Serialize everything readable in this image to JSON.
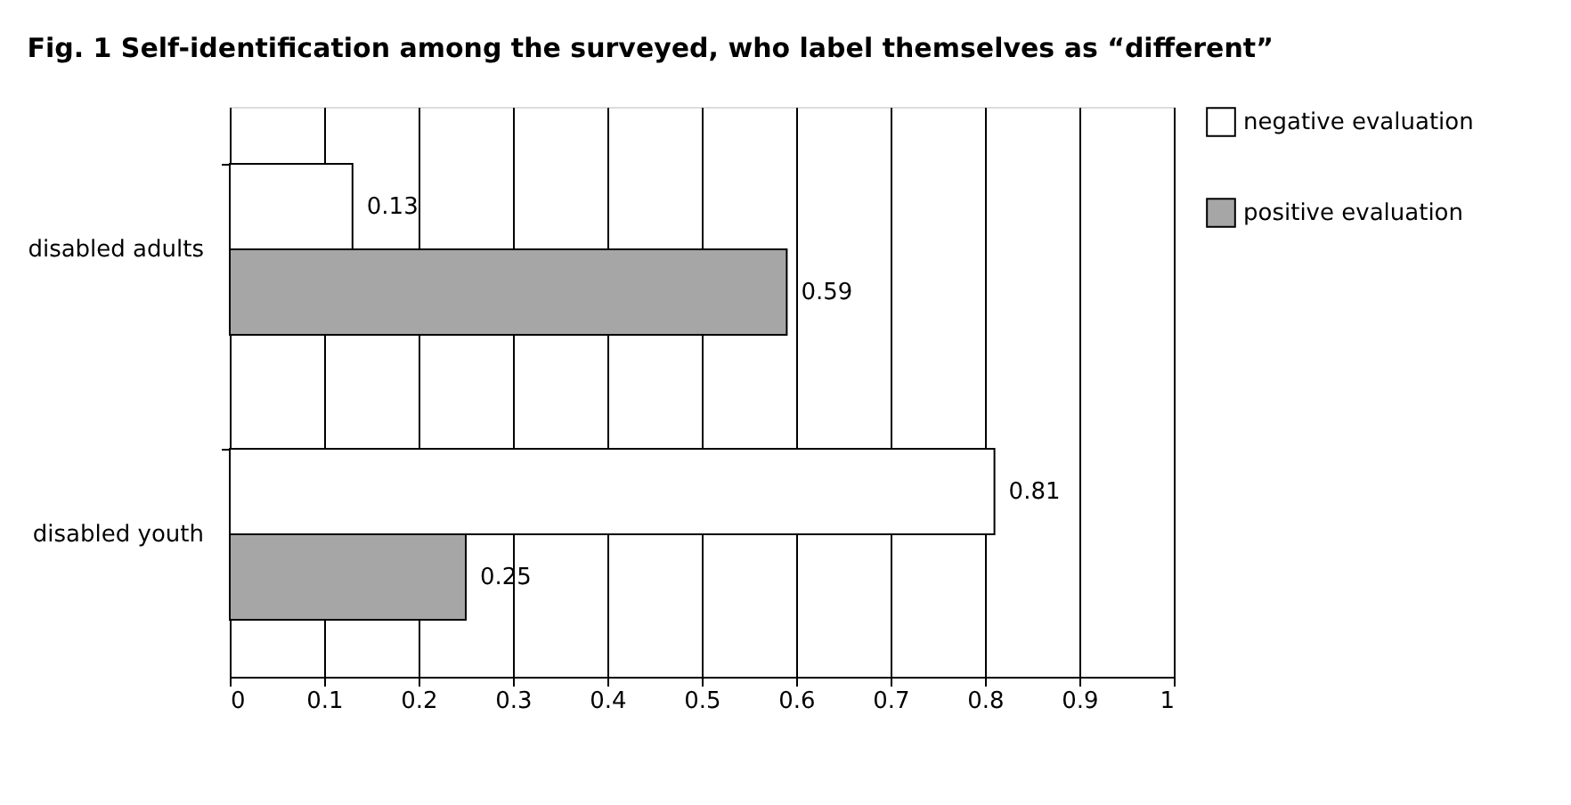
{
  "chart_data": {
    "type": "bar",
    "orientation": "horizontal",
    "title": "Fig. 1  Self-identification among the surveyed, who label themselves as “different”",
    "categories": [
      "disabled adults",
      "disabled youth"
    ],
    "series": [
      {
        "name": "negative evaluation",
        "color": "#ffffff",
        "values": [
          0.13,
          0.81
        ]
      },
      {
        "name": "positive evaluation",
        "color": "#a6a6a6",
        "values": [
          0.59,
          0.25
        ]
      }
    ],
    "xlim": [
      0,
      1
    ],
    "xticks": [
      0,
      0.1,
      0.2,
      0.3,
      0.4,
      0.5,
      0.6,
      0.7,
      0.8,
      0.9,
      1
    ],
    "grid": "x",
    "legend": "right",
    "data_labels": true
  }
}
